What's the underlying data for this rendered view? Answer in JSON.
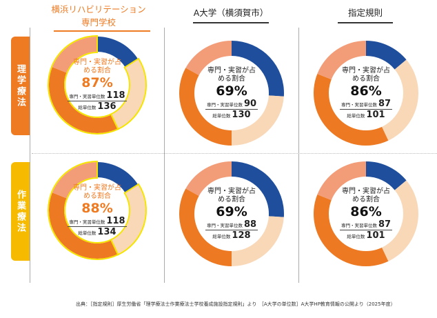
{
  "columns": [
    {
      "title_line1": "横浜リハビリテーション",
      "title_line2": "専門学校"
    },
    {
      "title": "A大学（横須賀市）"
    },
    {
      "title": "指定規則"
    }
  ],
  "rows": [
    {
      "label": "理学療法"
    },
    {
      "label": "作業療法"
    }
  ],
  "colors": {
    "blue": "#1f4e9c",
    "pale": "#f9d8b8",
    "orange": "#ed7a22",
    "salmon": "#f29c78",
    "highlight": "#f5e400"
  },
  "segment_order": [
    "blue",
    "pale",
    "orange",
    "salmon"
  ],
  "charts": [
    {
      "ratio_label": "専門・実習が占める割合",
      "percent": "87%",
      "spec_label": "専門・実習単位数",
      "spec_units": "118",
      "total_label": "総単位数",
      "total_units": "136",
      "segments": [
        16,
        27,
        38,
        19
      ],
      "highlight": true
    },
    {
      "ratio_label": "専門・実習が占める割合",
      "percent": "69%",
      "spec_label": "専門・実習単位数",
      "spec_units": "90",
      "total_label": "総単位数",
      "total_units": "130",
      "segments": [
        26,
        24,
        33,
        17
      ],
      "highlight": false
    },
    {
      "ratio_label": "専門・実習が占める割合",
      "percent": "86%",
      "spec_label": "専門・実習単位数",
      "spec_units": "87",
      "total_label": "総単位数",
      "total_units": "101",
      "segments": [
        14,
        29,
        38,
        19
      ],
      "highlight": false
    },
    {
      "ratio_label": "専門・実習が占める割合",
      "percent": "88%",
      "spec_label": "専門・実習単位数",
      "spec_units": "118",
      "total_label": "総単位数",
      "total_units": "134",
      "segments": [
        16,
        27,
        38,
        19
      ],
      "highlight": true
    },
    {
      "ratio_label": "専門・実習が占める割合",
      "percent": "69%",
      "spec_label": "専門・実習単位数",
      "spec_units": "88",
      "total_label": "総単位数",
      "total_units": "128",
      "segments": [
        26,
        24,
        33,
        17
      ],
      "highlight": false
    },
    {
      "ratio_label": "専門・実習が占める割合",
      "percent": "86%",
      "spec_label": "専門・実習単位数",
      "spec_units": "87",
      "total_label": "総単位数",
      "total_units": "101",
      "segments": [
        14,
        29,
        38,
        19
      ],
      "highlight": false
    }
  ],
  "footnote": "出典：［指定規則］厚生労働省「理学療法士作業療法士学校養成施設指定規則」より　［A大学の単位数］A大学HP教育情報の公開より（2025年度）"
}
